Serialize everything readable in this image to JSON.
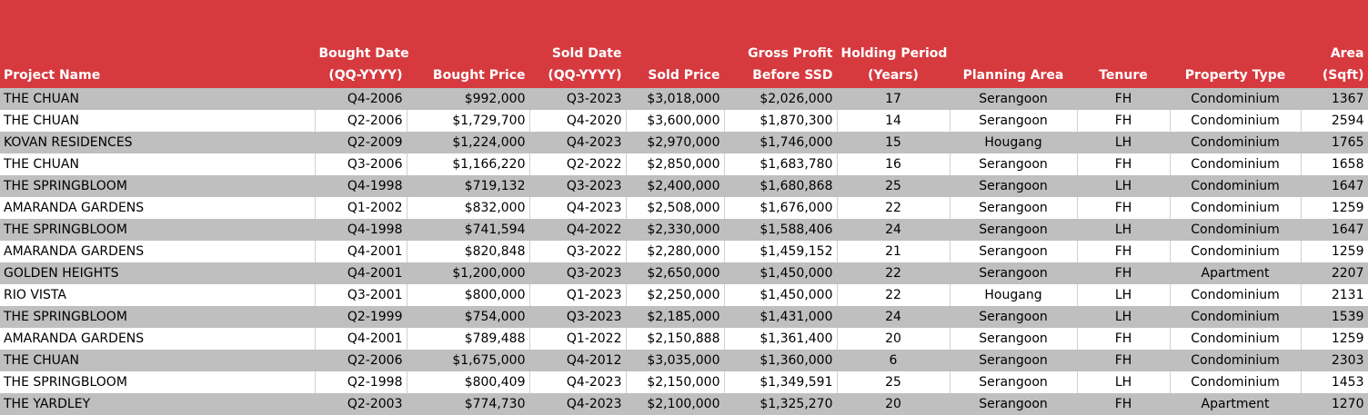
{
  "header_color": "#d63a3f",
  "stripe_color": "#bfbfbf",
  "columns": [
    {
      "l1": "",
      "l2": "Project Name"
    },
    {
      "l1": "Bought Date",
      "l2": "(QQ-YYYY)"
    },
    {
      "l1": "",
      "l2": "Bought Price"
    },
    {
      "l1": "Sold Date",
      "l2": "(QQ-YYYY)"
    },
    {
      "l1": "",
      "l2": "Sold Price"
    },
    {
      "l1": "Gross Profit",
      "l2": "Before SSD"
    },
    {
      "l1": "Holding Period",
      "l2": "(Years)"
    },
    {
      "l1": "",
      "l2": "Planning Area"
    },
    {
      "l1": "",
      "l2": "Tenure"
    },
    {
      "l1": "",
      "l2": "Property Type"
    },
    {
      "l1": "Area",
      "l2": "(Sqft)"
    }
  ],
  "rows": [
    [
      "THE CHUAN",
      "Q4-2006",
      "$992,000",
      "Q3-2023",
      "$3,018,000",
      "$2,026,000",
      "17",
      "Serangoon",
      "FH",
      "Condominium",
      "1367"
    ],
    [
      "THE CHUAN",
      "Q2-2006",
      "$1,729,700",
      "Q4-2020",
      "$3,600,000",
      "$1,870,300",
      "14",
      "Serangoon",
      "FH",
      "Condominium",
      "2594"
    ],
    [
      "KOVAN RESIDENCES",
      "Q2-2009",
      "$1,224,000",
      "Q4-2023",
      "$2,970,000",
      "$1,746,000",
      "15",
      "Hougang",
      "LH",
      "Condominium",
      "1765"
    ],
    [
      "THE CHUAN",
      "Q3-2006",
      "$1,166,220",
      "Q2-2022",
      "$2,850,000",
      "$1,683,780",
      "16",
      "Serangoon",
      "FH",
      "Condominium",
      "1658"
    ],
    [
      "THE SPRINGBLOOM",
      "Q4-1998",
      "$719,132",
      "Q3-2023",
      "$2,400,000",
      "$1,680,868",
      "25",
      "Serangoon",
      "LH",
      "Condominium",
      "1647"
    ],
    [
      "AMARANDA GARDENS",
      "Q1-2002",
      "$832,000",
      "Q4-2023",
      "$2,508,000",
      "$1,676,000",
      "22",
      "Serangoon",
      "FH",
      "Condominium",
      "1259"
    ],
    [
      "THE SPRINGBLOOM",
      "Q4-1998",
      "$741,594",
      "Q4-2022",
      "$2,330,000",
      "$1,588,406",
      "24",
      "Serangoon",
      "LH",
      "Condominium",
      "1647"
    ],
    [
      "AMARANDA GARDENS",
      "Q4-2001",
      "$820,848",
      "Q3-2022",
      "$2,280,000",
      "$1,459,152",
      "21",
      "Serangoon",
      "FH",
      "Condominium",
      "1259"
    ],
    [
      "GOLDEN HEIGHTS",
      "Q4-2001",
      "$1,200,000",
      "Q3-2023",
      "$2,650,000",
      "$1,450,000",
      "22",
      "Serangoon",
      "FH",
      "Apartment",
      "2207"
    ],
    [
      "RIO VISTA",
      "Q3-2001",
      "$800,000",
      "Q1-2023",
      "$2,250,000",
      "$1,450,000",
      "22",
      "Hougang",
      "LH",
      "Condominium",
      "2131"
    ],
    [
      "THE SPRINGBLOOM",
      "Q2-1999",
      "$754,000",
      "Q3-2023",
      "$2,185,000",
      "$1,431,000",
      "24",
      "Serangoon",
      "LH",
      "Condominium",
      "1539"
    ],
    [
      "AMARANDA GARDENS",
      "Q4-2001",
      "$789,488",
      "Q1-2022",
      "$2,150,888",
      "$1,361,400",
      "20",
      "Serangoon",
      "FH",
      "Condominium",
      "1259"
    ],
    [
      "THE CHUAN",
      "Q2-2006",
      "$1,675,000",
      "Q4-2012",
      "$3,035,000",
      "$1,360,000",
      "6",
      "Serangoon",
      "FH",
      "Condominium",
      "2303"
    ],
    [
      "THE SPRINGBLOOM",
      "Q2-1998",
      "$800,409",
      "Q4-2023",
      "$2,150,000",
      "$1,349,591",
      "25",
      "Serangoon",
      "LH",
      "Condominium",
      "1453"
    ],
    [
      "THE YARDLEY",
      "Q2-2003",
      "$774,730",
      "Q4-2023",
      "$2,100,000",
      "$1,325,270",
      "20",
      "Serangoon",
      "FH",
      "Apartment",
      "1270"
    ]
  ]
}
